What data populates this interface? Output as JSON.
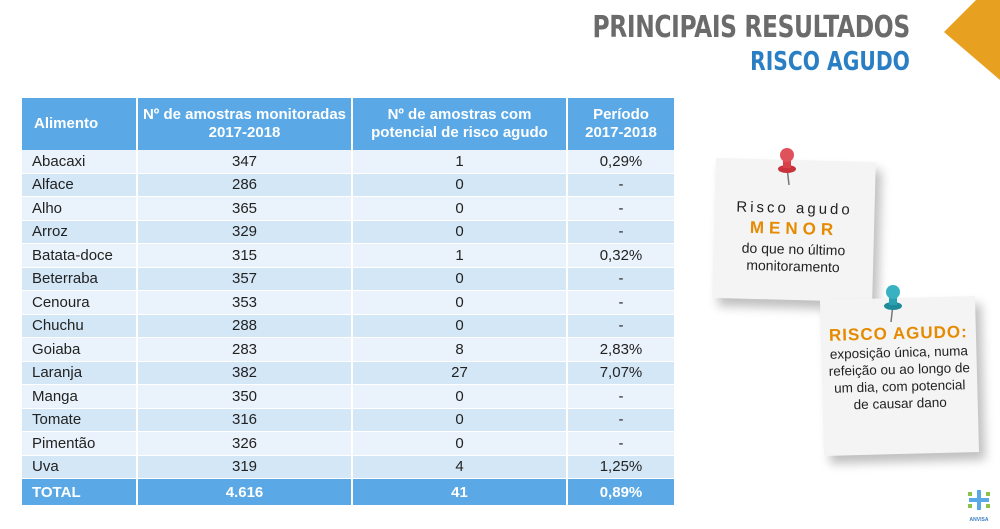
{
  "header": {
    "title": "PRINCIPAIS RESULTADOS",
    "subtitle": "RISCO AGUDO"
  },
  "table": {
    "columns": [
      "Alimento",
      "Nº de amostras monitoradas 2017-2018",
      "Nº de amostras com potencial de risco agudo",
      "Período 2017-2018"
    ],
    "rows": [
      {
        "food": "Abacaxi",
        "monitored": "347",
        "risk": "1",
        "period": "0,29%"
      },
      {
        "food": "Alface",
        "monitored": "286",
        "risk": "0",
        "period": "-"
      },
      {
        "food": "Alho",
        "monitored": "365",
        "risk": "0",
        "period": "-"
      },
      {
        "food": "Arroz",
        "monitored": "329",
        "risk": "0",
        "period": "-"
      },
      {
        "food": "Batata-doce",
        "monitored": "315",
        "risk": "1",
        "period": "0,32%"
      },
      {
        "food": "Beterraba",
        "monitored": "357",
        "risk": "0",
        "period": "-"
      },
      {
        "food": "Cenoura",
        "monitored": "353",
        "risk": "0",
        "period": "-"
      },
      {
        "food": "Chuchu",
        "monitored": "288",
        "risk": "0",
        "period": "-"
      },
      {
        "food": "Goiaba",
        "monitored": "283",
        "risk": "8",
        "period": "2,83%"
      },
      {
        "food": "Laranja",
        "monitored": "382",
        "risk": "27",
        "period": "7,07%"
      },
      {
        "food": "Manga",
        "monitored": "350",
        "risk": "0",
        "period": "-"
      },
      {
        "food": "Tomate",
        "monitored": "316",
        "risk": "0",
        "period": "-"
      },
      {
        "food": "Pimentão",
        "monitored": "326",
        "risk": "0",
        "period": "-"
      },
      {
        "food": "Uva",
        "monitored": "319",
        "risk": "4",
        "period": "1,25%"
      }
    ],
    "total": {
      "food": "TOTAL",
      "monitored": "4.616",
      "risk": "41",
      "period": "0,89%"
    }
  },
  "note1": {
    "line1": "Risco agudo",
    "line2": "MENOR",
    "line3": "do que no último monitoramento"
  },
  "note2": {
    "heading": "RISCO AGUDO:",
    "body": "exposição única, numa refeição ou ao longo de um dia, com potencial de causar dano"
  },
  "logo": {
    "text": "ANVISA"
  },
  "colors": {
    "header_blue": "#5aa9e6",
    "accent_orange": "#e68a00",
    "subtitle_blue": "#2a7fc4"
  }
}
